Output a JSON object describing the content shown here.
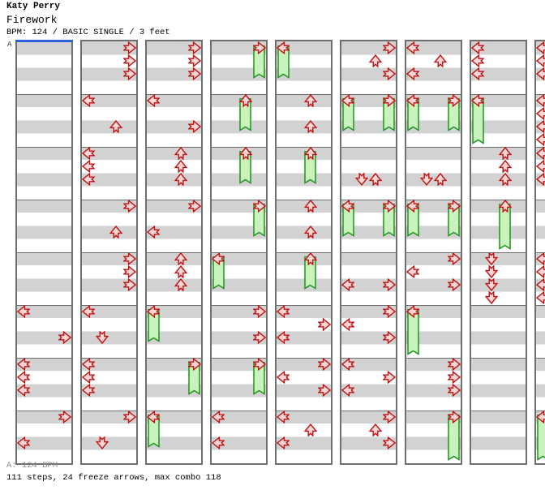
{
  "header": {
    "artist": "Katy Perry",
    "song_title": "Firework",
    "chart_info": "BPM: 124 / BASIC SINGLE / 3 feet"
  },
  "section": {
    "label": "A"
  },
  "footer": {
    "section_bpm": "A: 124 BPM",
    "stats": "111 steps, 24 freeze arrows, max combo 118"
  },
  "colors": {
    "band_gray": "#d2d2d2",
    "band_white": "#ffffff",
    "strip_border": "#6e6e6e",
    "arrow_fill": "#fbd6d6",
    "arrow_stroke": "#c11212",
    "freeze_fill": "#c9f2bd",
    "freeze_stroke": "#1d951d",
    "section_marker": "#2b62d9",
    "footer_muted": "#8a8a8a"
  },
  "chart_data": {
    "type": "ddr-step-chart",
    "song": "Firework",
    "artist": "Katy Perry",
    "bpm": 124,
    "difficulty": "BASIC SINGLE",
    "feet": 3,
    "stats": {
      "steps": 111,
      "freeze_arrows": 24,
      "max_combo": 118
    },
    "lanes": [
      "left",
      "down",
      "up",
      "right"
    ],
    "columns_visible": 9,
    "last_column_clipped": true,
    "measures_per_column": 8,
    "beats_per_measure": 4,
    "section_marker": {
      "label": "A",
      "column": 0,
      "measure": 0
    },
    "note_format": "[column, measure, beat, direction(L|D|U|R), freeze_length_beats(0=tap)]",
    "notes": [
      [
        0,
        5,
        0,
        "L",
        0
      ],
      [
        0,
        5,
        2,
        "R",
        0
      ],
      [
        0,
        6,
        0,
        "L",
        0
      ],
      [
        0,
        6,
        1,
        "L",
        0
      ],
      [
        0,
        6,
        2,
        "L",
        0
      ],
      [
        0,
        7,
        0,
        "R",
        0
      ],
      [
        0,
        7,
        2,
        "L",
        0
      ],
      [
        1,
        0,
        0,
        "R",
        0
      ],
      [
        1,
        0,
        1,
        "R",
        0
      ],
      [
        1,
        0,
        2,
        "R",
        0
      ],
      [
        1,
        1,
        0,
        "L",
        0
      ],
      [
        1,
        1,
        2,
        "U",
        0
      ],
      [
        1,
        2,
        0,
        "L",
        0
      ],
      [
        1,
        2,
        1,
        "L",
        0
      ],
      [
        1,
        2,
        2,
        "L",
        0
      ],
      [
        1,
        3,
        0,
        "R",
        0
      ],
      [
        1,
        3,
        2,
        "U",
        0
      ],
      [
        1,
        4,
        0,
        "R",
        0
      ],
      [
        1,
        4,
        1,
        "R",
        0
      ],
      [
        1,
        4,
        2,
        "R",
        0
      ],
      [
        1,
        5,
        0,
        "L",
        0
      ],
      [
        1,
        5,
        2,
        "D",
        0
      ],
      [
        1,
        6,
        0,
        "L",
        0
      ],
      [
        1,
        6,
        1,
        "L",
        0
      ],
      [
        1,
        6,
        2,
        "L",
        0
      ],
      [
        1,
        7,
        0,
        "R",
        0
      ],
      [
        1,
        7,
        2,
        "D",
        0
      ],
      [
        2,
        0,
        0,
        "R",
        0
      ],
      [
        2,
        0,
        1,
        "R",
        0
      ],
      [
        2,
        0,
        2,
        "R",
        0
      ],
      [
        2,
        1,
        0,
        "L",
        0
      ],
      [
        2,
        1,
        2,
        "R",
        0
      ],
      [
        2,
        2,
        0,
        "U",
        0
      ],
      [
        2,
        2,
        1,
        "U",
        0
      ],
      [
        2,
        2,
        2,
        "U",
        0
      ],
      [
        2,
        3,
        0,
        "R",
        0
      ],
      [
        2,
        3,
        2,
        "L",
        0
      ],
      [
        2,
        4,
        0,
        "U",
        0
      ],
      [
        2,
        4,
        1,
        "U",
        0
      ],
      [
        2,
        4,
        2,
        "U",
        0
      ],
      [
        2,
        5,
        0,
        "L",
        2
      ],
      [
        2,
        6,
        0,
        "R",
        2
      ],
      [
        2,
        7,
        0,
        "L",
        2
      ],
      [
        3,
        0,
        0,
        "R",
        2
      ],
      [
        3,
        1,
        0,
        "U",
        2
      ],
      [
        3,
        2,
        0,
        "U",
        2
      ],
      [
        3,
        3,
        0,
        "R",
        2
      ],
      [
        3,
        4,
        0,
        "L",
        2
      ],
      [
        3,
        5,
        0,
        "R",
        0
      ],
      [
        3,
        5,
        2,
        "R",
        0
      ],
      [
        3,
        6,
        0,
        "R",
        2
      ],
      [
        3,
        7,
        0,
        "L",
        0
      ],
      [
        3,
        7,
        2,
        "L",
        0
      ],
      [
        4,
        0,
        0,
        "L",
        2
      ],
      [
        4,
        1,
        0,
        "U",
        0
      ],
      [
        4,
        1,
        2,
        "U",
        0
      ],
      [
        4,
        2,
        0,
        "U",
        2
      ],
      [
        4,
        3,
        0,
        "U",
        0
      ],
      [
        4,
        3,
        2,
        "U",
        0
      ],
      [
        4,
        4,
        0,
        "U",
        2
      ],
      [
        4,
        5,
        0,
        "L",
        0
      ],
      [
        4,
        5,
        1,
        "R",
        0
      ],
      [
        4,
        5,
        2,
        "L",
        0
      ],
      [
        4,
        6,
        0,
        "R",
        0
      ],
      [
        4,
        6,
        1,
        "L",
        0
      ],
      [
        4,
        6,
        2,
        "R",
        0
      ],
      [
        4,
        7,
        0,
        "L",
        0
      ],
      [
        4,
        7,
        1,
        "U",
        0
      ],
      [
        4,
        7,
        2,
        "L",
        0
      ],
      [
        5,
        0,
        0,
        "R",
        0
      ],
      [
        5,
        0,
        1,
        "U",
        0
      ],
      [
        5,
        0,
        2,
        "R",
        0
      ],
      [
        5,
        1,
        0,
        "L",
        2
      ],
      [
        5,
        1,
        0,
        "R",
        2
      ],
      [
        5,
        2,
        2,
        "D",
        0
      ],
      [
        5,
        2,
        2,
        "U",
        0
      ],
      [
        5,
        3,
        0,
        "L",
        2
      ],
      [
        5,
        3,
        0,
        "R",
        2
      ],
      [
        5,
        4,
        2,
        "L",
        0
      ],
      [
        5,
        4,
        2,
        "R",
        0
      ],
      [
        5,
        5,
        0,
        "R",
        0
      ],
      [
        5,
        5,
        1,
        "L",
        0
      ],
      [
        5,
        5,
        2,
        "R",
        0
      ],
      [
        5,
        6,
        0,
        "L",
        0
      ],
      [
        5,
        6,
        1,
        "R",
        0
      ],
      [
        5,
        6,
        2,
        "L",
        0
      ],
      [
        5,
        7,
        0,
        "R",
        0
      ],
      [
        5,
        7,
        1,
        "U",
        0
      ],
      [
        5,
        7,
        2,
        "R",
        0
      ],
      [
        6,
        0,
        0,
        "L",
        0
      ],
      [
        6,
        0,
        1,
        "U",
        0
      ],
      [
        6,
        0,
        2,
        "L",
        0
      ],
      [
        6,
        1,
        0,
        "L",
        2
      ],
      [
        6,
        1,
        0,
        "R",
        2
      ],
      [
        6,
        2,
        2,
        "D",
        0
      ],
      [
        6,
        2,
        2,
        "U",
        0
      ],
      [
        6,
        3,
        0,
        "L",
        2
      ],
      [
        6,
        3,
        0,
        "R",
        2
      ],
      [
        6,
        4,
        0,
        "R",
        0
      ],
      [
        6,
        4,
        1,
        "L",
        0
      ],
      [
        6,
        4,
        2,
        "R",
        0
      ],
      [
        6,
        5,
        0,
        "L",
        3
      ],
      [
        6,
        6,
        0,
        "R",
        0
      ],
      [
        6,
        6,
        1,
        "R",
        0
      ],
      [
        6,
        6,
        2,
        "R",
        0
      ],
      [
        6,
        7,
        0,
        "R",
        3
      ],
      [
        7,
        0,
        0,
        "L",
        0
      ],
      [
        7,
        0,
        1,
        "L",
        0
      ],
      [
        7,
        0,
        2,
        "L",
        0
      ],
      [
        7,
        1,
        0,
        "L",
        3
      ],
      [
        7,
        2,
        0,
        "U",
        0
      ],
      [
        7,
        2,
        1,
        "U",
        0
      ],
      [
        7,
        2,
        2,
        "U",
        0
      ],
      [
        7,
        3,
        0,
        "U",
        3
      ],
      [
        7,
        4,
        0,
        "D",
        0
      ],
      [
        7,
        4,
        1,
        "D",
        0
      ],
      [
        7,
        4,
        2,
        "D",
        0
      ],
      [
        7,
        4,
        3,
        "D",
        0
      ],
      [
        8,
        0,
        0,
        "L",
        0
      ],
      [
        8,
        0,
        1,
        "L",
        0
      ],
      [
        8,
        0,
        2,
        "L",
        0
      ],
      [
        8,
        1,
        0,
        "L",
        0
      ],
      [
        8,
        1,
        1,
        "L",
        0
      ],
      [
        8,
        1,
        2,
        "L",
        0
      ],
      [
        8,
        1,
        3,
        "L",
        0
      ],
      [
        8,
        2,
        0,
        "L",
        0
      ],
      [
        8,
        2,
        1,
        "L",
        0
      ],
      [
        8,
        2,
        2,
        "L",
        0
      ],
      [
        8,
        4,
        0,
        "L",
        0
      ],
      [
        8,
        4,
        1,
        "L",
        0
      ],
      [
        8,
        4,
        2,
        "L",
        0
      ],
      [
        8,
        4,
        3,
        "L",
        0
      ],
      [
        8,
        7,
        0,
        "L",
        3
      ]
    ]
  }
}
